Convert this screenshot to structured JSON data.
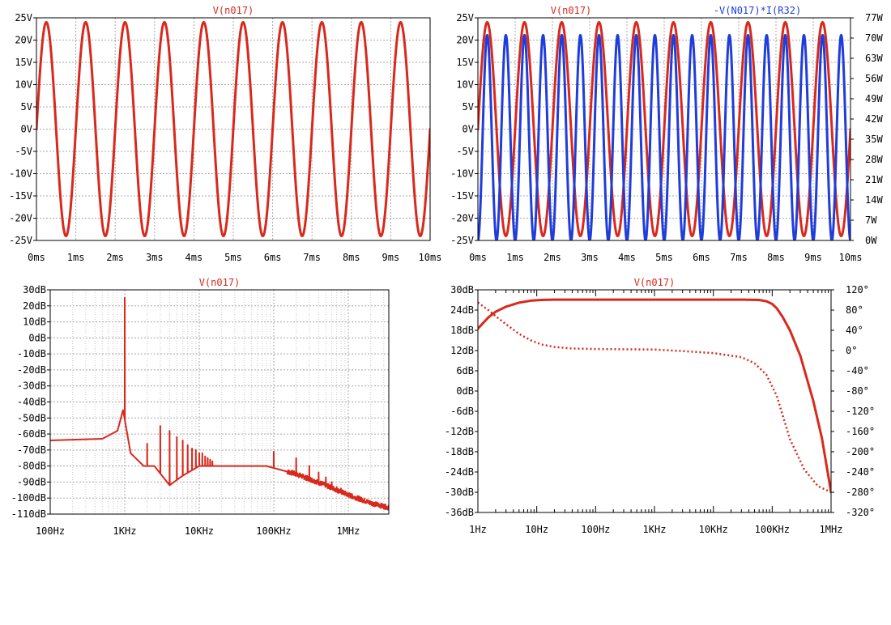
{
  "colors": {
    "red": "#d8291d",
    "blue": "#1f3ddb",
    "grid": "#a8a8a8",
    "axis": "#000000"
  },
  "chart_data": [
    {
      "id": "tl",
      "type": "line",
      "title": "V(n017)",
      "xscale": "linear",
      "xlim": [
        0,
        10
      ],
      "xticks": [
        0,
        1,
        2,
        3,
        4,
        5,
        6,
        7,
        8,
        9,
        10
      ],
      "xtick_labels": [
        "0ms",
        "1ms",
        "2ms",
        "3ms",
        "4ms",
        "5ms",
        "6ms",
        "7ms",
        "8ms",
        "9ms",
        "10ms"
      ],
      "ylim": [
        -25,
        25
      ],
      "yticks": [
        -25,
        -20,
        -15,
        -10,
        -5,
        0,
        5,
        10,
        15,
        20,
        25
      ],
      "ytick_labels": [
        "-25V",
        "-20V",
        "-15V",
        "-10V",
        "-5V",
        "0V",
        "5V",
        "10V",
        "15V",
        "20V",
        "25V"
      ],
      "grid": true,
      "series": [
        {
          "name": "V(n017)",
          "color": "#d8291d",
          "axis": "left",
          "kind": "sine",
          "amplitude": 24,
          "frequency_per_ms": 1,
          "offset": 0
        }
      ]
    },
    {
      "id": "tr",
      "type": "line",
      "titles": [
        "V(n017)",
        "-V(N017)*I(R32)"
      ],
      "xscale": "linear",
      "xlim": [
        0,
        10
      ],
      "xticks": [
        0,
        1,
        2,
        3,
        4,
        5,
        6,
        7,
        8,
        9,
        10
      ],
      "xtick_labels": [
        "0ms",
        "1ms",
        "2ms",
        "3ms",
        "4ms",
        "5ms",
        "6ms",
        "7ms",
        "8ms",
        "9ms",
        "10ms"
      ],
      "ylim": [
        -25,
        25
      ],
      "yticks": [
        -25,
        -20,
        -15,
        -10,
        -5,
        0,
        5,
        10,
        15,
        20,
        25
      ],
      "ytick_labels": [
        "-25V",
        "-20V",
        "-15V",
        "-10V",
        "-5V",
        "0V",
        "5V",
        "10V",
        "15V",
        "20V",
        "25V"
      ],
      "y2lim": [
        0,
        77
      ],
      "y2ticks": [
        0,
        7,
        14,
        21,
        28,
        35,
        42,
        49,
        56,
        63,
        70,
        77
      ],
      "y2tick_labels": [
        "0W",
        "7W",
        "14W",
        "21W",
        "28W",
        "35W",
        "42W",
        "49W",
        "56W",
        "63W",
        "70W",
        "77W"
      ],
      "grid": true,
      "series": [
        {
          "name": "V(n017)",
          "color": "#d8291d",
          "axis": "left",
          "kind": "sine",
          "amplitude": 24,
          "frequency_per_ms": 1,
          "offset": 0
        },
        {
          "name": "-V(N017)*I(R32)",
          "color": "#1f3ddb",
          "axis": "right",
          "kind": "sine_squared",
          "peak": 71,
          "frequency_per_ms": 2,
          "min": 0
        }
      ]
    },
    {
      "id": "bl",
      "type": "line",
      "title": "V(n017)",
      "xscale": "log",
      "xlim": [
        100,
        3500000
      ],
      "xticks": [
        100,
        1000,
        10000,
        100000,
        1000000
      ],
      "xtick_labels": [
        "100Hz",
        "1KHz",
        "10KHz",
        "100KHz",
        "1MHz"
      ],
      "ylim": [
        -110,
        30
      ],
      "yticks": [
        -110,
        -100,
        -90,
        -80,
        -70,
        -60,
        -50,
        -40,
        -30,
        -20,
        -10,
        0,
        10,
        20,
        30
      ],
      "ytick_labels": [
        "-110dB",
        "-100dB",
        "-90dB",
        "-80dB",
        "-70dB",
        "-60dB",
        "-50dB",
        "-40dB",
        "-30dB",
        "-20dB",
        "-10dB",
        "0dB",
        "10dB",
        "20dB",
        "30dB"
      ],
      "grid": true,
      "series": [
        {
          "name": "V(n017)",
          "color": "#d8291d",
          "axis": "left",
          "kind": "spectrum",
          "floor": [
            [
              100,
              -64
            ],
            [
              500,
              -63
            ],
            [
              800,
              -58
            ],
            [
              950,
              -45
            ],
            [
              1200,
              -72
            ],
            [
              1800,
              -80
            ],
            [
              2500,
              -80
            ],
            [
              4000,
              -92
            ],
            [
              6000,
              -86
            ],
            [
              10000,
              -80
            ],
            [
              20000,
              -80
            ],
            [
              50000,
              -80
            ],
            [
              80000,
              -80
            ],
            [
              200000,
              -85
            ],
            [
              500000,
              -92
            ],
            [
              1000000,
              -98
            ],
            [
              2000000,
              -103
            ],
            [
              3500000,
              -106
            ]
          ],
          "peaks": [
            [
              1000,
              25
            ],
            [
              2000,
              -66
            ],
            [
              3000,
              -55
            ],
            [
              4000,
              -58
            ],
            [
              5000,
              -62
            ],
            [
              6000,
              -64
            ],
            [
              7000,
              -67
            ],
            [
              8000,
              -69
            ],
            [
              9000,
              -70
            ],
            [
              10000,
              -72
            ],
            [
              11000,
              -72
            ],
            [
              12000,
              -74
            ],
            [
              13000,
              -75
            ],
            [
              14000,
              -76
            ],
            [
              15000,
              -77
            ],
            [
              100000,
              -71
            ],
            [
              200000,
              -75
            ],
            [
              300000,
              -80
            ],
            [
              400000,
              -84
            ],
            [
              500000,
              -87
            ],
            [
              600000,
              -90
            ],
            [
              700000,
              -93
            ],
            [
              800000,
              -94
            ]
          ]
        }
      ]
    },
    {
      "id": "br",
      "type": "line",
      "title": "V(n017)",
      "xscale": "log",
      "xlim": [
        1,
        1000000
      ],
      "xticks": [
        1,
        10,
        100,
        1000,
        10000,
        100000,
        1000000
      ],
      "xtick_labels": [
        "1Hz",
        "10Hz",
        "100Hz",
        "1KHz",
        "10KHz",
        "100KHz",
        "1MHz"
      ],
      "ylim": [
        -36,
        30
      ],
      "yticks": [
        -36,
        -30,
        -24,
        -18,
        -12,
        -6,
        0,
        6,
        12,
        18,
        24,
        30
      ],
      "ytick_labels": [
        "-36dB",
        "-30dB",
        "-24dB",
        "-18dB",
        "-12dB",
        "-6dB",
        "0dB",
        "6dB",
        "12dB",
        "18dB",
        "24dB",
        "30dB"
      ],
      "y2lim": [
        -320,
        120
      ],
      "y2ticks": [
        -320,
        -280,
        -240,
        -200,
        -160,
        -120,
        -80,
        -40,
        0,
        40,
        80,
        120
      ],
      "y2tick_labels": [
        "-320°",
        "-280°",
        "-240°",
        "-200°",
        "-160°",
        "-120°",
        "-80°",
        "-40°",
        "0°",
        "40°",
        "80°",
        "120°"
      ],
      "grid": false,
      "series": [
        {
          "name": "magnitude",
          "color": "#d8291d",
          "axis": "left",
          "style": "solid",
          "points": [
            [
              1,
              18.5
            ],
            [
              1.5,
              21.8
            ],
            [
              2,
              23.5
            ],
            [
              3,
              25
            ],
            [
              5,
              26.2
            ],
            [
              8,
              26.8
            ],
            [
              12,
              27
            ],
            [
              20,
              27.1
            ],
            [
              1000,
              27.1
            ],
            [
              30000,
              27.1
            ],
            [
              60000,
              27
            ],
            [
              80000,
              26.6
            ],
            [
              100000,
              25.8
            ],
            [
              120000,
              24.5
            ],
            [
              150000,
              22
            ],
            [
              200000,
              18
            ],
            [
              300000,
              10.5
            ],
            [
              500000,
              -3
            ],
            [
              700000,
              -14
            ],
            [
              1000000,
              -30
            ]
          ]
        },
        {
          "name": "phase",
          "color": "#d8291d",
          "axis": "right",
          "style": "dotted",
          "points": [
            [
              1,
              95
            ],
            [
              1.5,
              80
            ],
            [
              2,
              68
            ],
            [
              3,
              52
            ],
            [
              5,
              33
            ],
            [
              8,
              20
            ],
            [
              12,
              12
            ],
            [
              20,
              7
            ],
            [
              40,
              4
            ],
            [
              100,
              3
            ],
            [
              300,
              2.5
            ],
            [
              1000,
              2
            ],
            [
              3000,
              -1
            ],
            [
              10000,
              -5
            ],
            [
              30000,
              -13
            ],
            [
              50000,
              -25
            ],
            [
              80000,
              -48
            ],
            [
              120000,
              -90
            ],
            [
              200000,
              -175
            ],
            [
              350000,
              -235
            ],
            [
              600000,
              -268
            ],
            [
              1000000,
              -280
            ]
          ]
        }
      ]
    }
  ]
}
